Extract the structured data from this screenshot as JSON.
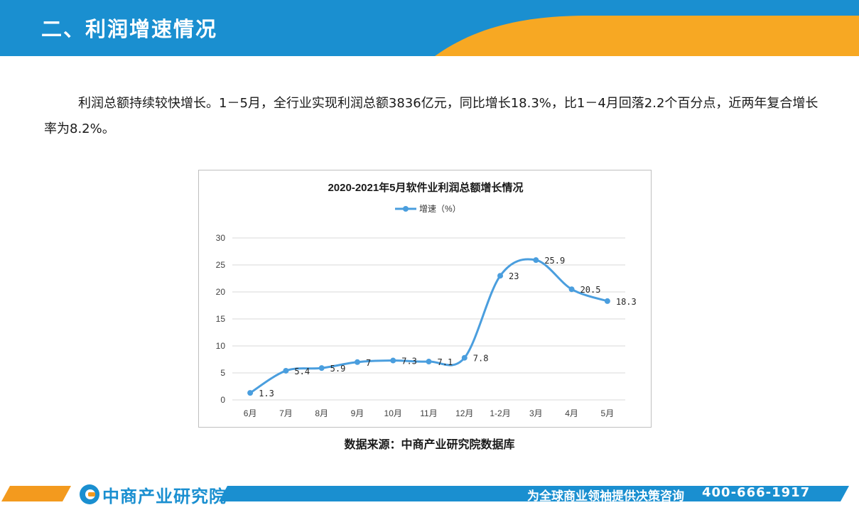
{
  "header": {
    "title": "二、利润增速情况",
    "colors": {
      "blue": "#1a8fd0",
      "orange": "#f7a823"
    }
  },
  "intro": {
    "text": "利润总额持续较快增长。1－5月，全行业实现利润总额3836亿元，同比增长18.3%，比1－4月回落2.2个百分点，近两年复合增长率为8.2%。"
  },
  "chart_data": {
    "type": "line",
    "title": "2020-2021年5月软件业利润总额增长情况",
    "categories": [
      "6月",
      "7月",
      "8月",
      "9月",
      "10月",
      "11月",
      "12月",
      "1-2月",
      "3月",
      "4月",
      "5月"
    ],
    "series": [
      {
        "name": "增速（%）",
        "values": [
          1.3,
          5.4,
          5.9,
          7,
          7.3,
          7.1,
          7.8,
          23,
          25.9,
          20.5,
          18.3
        ],
        "labels": [
          "1.3",
          "5.4",
          "5.9",
          "7",
          "7.3",
          "7.1",
          "7.8",
          "23",
          "25.9",
          "20.5",
          "18.3"
        ],
        "color": "#4a9ede"
      }
    ],
    "ylim": [
      0,
      30
    ],
    "yticks": [
      0,
      5,
      10,
      15,
      20,
      25,
      30
    ],
    "grid": true,
    "legend": "top-center",
    "smooth": true
  },
  "source": {
    "text": "数据来源：中商产业研究院数据库"
  },
  "footer": {
    "logo_text": "中商产业研究院",
    "slogan": "为全球商业领袖提供决策咨询",
    "phone": "400-666-1917"
  }
}
